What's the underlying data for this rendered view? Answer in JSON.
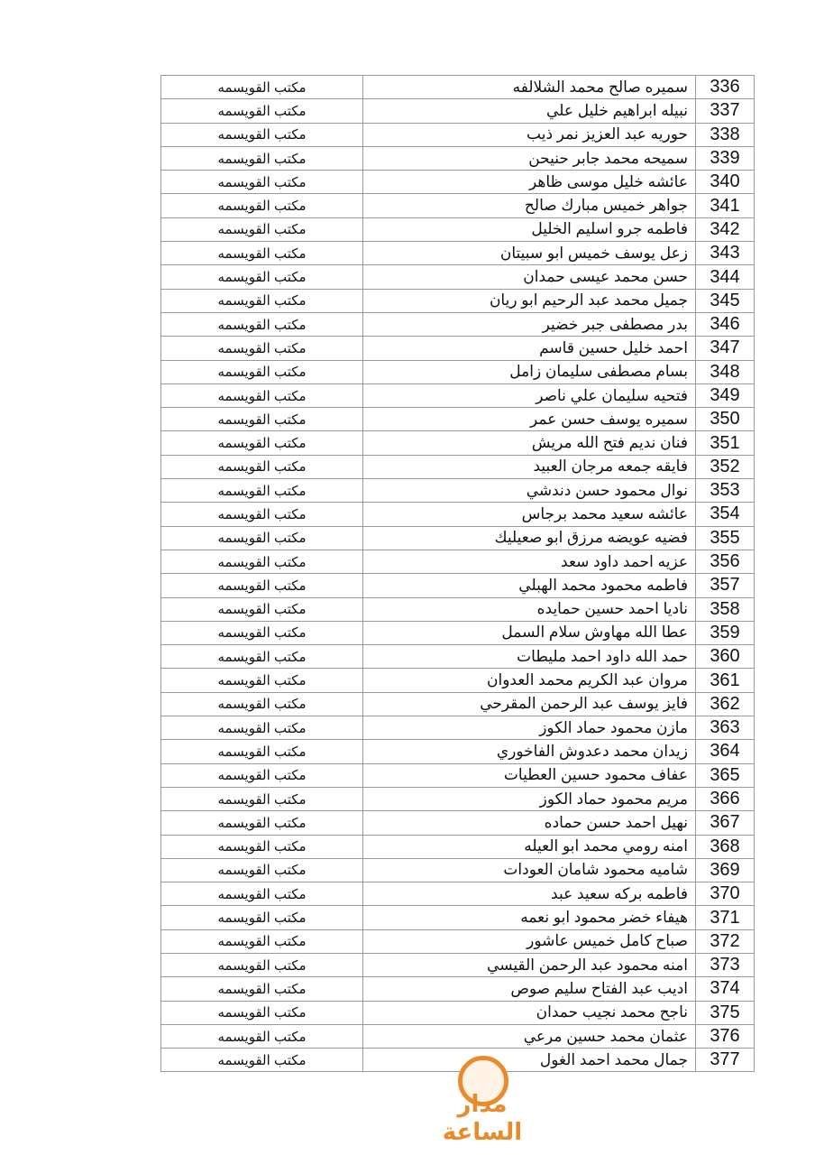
{
  "office_label": "مكتب القويسمه",
  "rows": [
    {
      "no": "336",
      "name": "سميره صالح محمد الشلالفه"
    },
    {
      "no": "337",
      "name": "نبيله ابراهيم خليل علي"
    },
    {
      "no": "338",
      "name": "حوريه عبد العزيز نمر ذيب"
    },
    {
      "no": "339",
      "name": "سميحه محمد جابر حنيحن"
    },
    {
      "no": "340",
      "name": "عائشه خليل موسى ظاهر"
    },
    {
      "no": "341",
      "name": "جواهر خميس مبارك صالح"
    },
    {
      "no": "342",
      "name": "فاطمه جرو اسليم الخليل"
    },
    {
      "no": "343",
      "name": "زعل يوسف خميس ابو سبيتان"
    },
    {
      "no": "344",
      "name": "حسن محمد عيسى حمدان"
    },
    {
      "no": "345",
      "name": "جميل محمد عبد الرحيم ابو ريان"
    },
    {
      "no": "346",
      "name": "بدر مصطفى جبر خضير"
    },
    {
      "no": "347",
      "name": "احمد خليل حسين قاسم"
    },
    {
      "no": "348",
      "name": "بسام مصطفى سليمان زامل"
    },
    {
      "no": "349",
      "name": "فتحيه سليمان علي ناصر"
    },
    {
      "no": "350",
      "name": "سميره يوسف حسن عمر"
    },
    {
      "no": "351",
      "name": "فنان نديم فتح  الله مريش"
    },
    {
      "no": "352",
      "name": "فايقه جمعه مرجان العبيد"
    },
    {
      "no": "353",
      "name": "نوال محمود حسن دندشي"
    },
    {
      "no": "354",
      "name": "عائشه سعيد محمد برجاس"
    },
    {
      "no": "355",
      "name": "فضيه عويضه مرزق ابو صعيليك"
    },
    {
      "no": "356",
      "name": "عزيه احمد داود سعد"
    },
    {
      "no": "357",
      "name": "فاطمه محمود محمد الهبلي"
    },
    {
      "no": "358",
      "name": "ناديا احمد حسين حمايده"
    },
    {
      "no": "359",
      "name": "عطا الله مهاوش سلام السمل"
    },
    {
      "no": "360",
      "name": "حمد الله داود احمد مليطات"
    },
    {
      "no": "361",
      "name": "مروان عبد الكريم محمد العدوان"
    },
    {
      "no": "362",
      "name": "فايز يوسف عبد الرحمن المقرحي"
    },
    {
      "no": "363",
      "name": "مازن محمود حماد الكوز"
    },
    {
      "no": "364",
      "name": "زيدان محمد دعدوش الفاخوري"
    },
    {
      "no": "365",
      "name": "عفاف محمود حسين العطيات"
    },
    {
      "no": "366",
      "name": "مريم محمود حماد الكوز"
    },
    {
      "no": "367",
      "name": "نهيل احمد حسن حماده"
    },
    {
      "no": "368",
      "name": "امنه رومي محمد ابو العيله"
    },
    {
      "no": "369",
      "name": "شاميه محمود شامان العودات"
    },
    {
      "no": "370",
      "name": "فاطمه بركه سعيد عبد"
    },
    {
      "no": "371",
      "name": "هيفاء خضر محمود ابو نعمه"
    },
    {
      "no": "372",
      "name": "صباح كامل خميس عاشور"
    },
    {
      "no": "373",
      "name": "امنه محمود عبد الرحمن القيسي"
    },
    {
      "no": "374",
      "name": "اديب عبد الفتاح سليم صوص"
    },
    {
      "no": "375",
      "name": "ناجح محمد نجيب حمدان"
    },
    {
      "no": "376",
      "name": "عثمان محمد حسين مرعي"
    },
    {
      "no": "377",
      "name": "جمال محمد احمد الغول"
    }
  ],
  "logo": {
    "text": "مدار الساعة",
    "color": "#e98a2b"
  }
}
